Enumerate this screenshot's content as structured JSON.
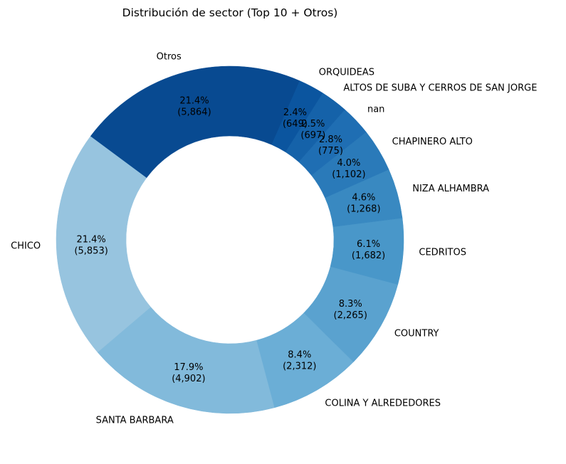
{
  "chart_data": {
    "type": "pie",
    "variant": "donut",
    "title": "Distribución de sector (Top 10 + Otros)",
    "legend": "none",
    "start_angle": "66.3° counter-clockwise from the positive x-axis",
    "direction": "counterclockwise",
    "slices": [
      {
        "label": "Otros",
        "value": 5864,
        "percent_label": "21.4%",
        "count_label": "(5,864)",
        "color": "#084a91"
      },
      {
        "label": "CHICO",
        "value": 5853,
        "percent_label": "21.4%",
        "count_label": "(5,853)",
        "color": "#97c4df"
      },
      {
        "label": "SANTA BARBARA",
        "value": 4902,
        "percent_label": "17.9%",
        "count_label": "(4,902)",
        "color": "#82badb"
      },
      {
        "label": "COLINA Y ALREDEDORES",
        "value": 2312,
        "percent_label": "8.4%",
        "count_label": "(2,312)",
        "color": "#6baed6"
      },
      {
        "label": "COUNTRY",
        "value": 2265,
        "percent_label": "8.3%",
        "count_label": "(2,265)",
        "color": "#5aa2cf"
      },
      {
        "label": "CEDRITOS",
        "value": 1682,
        "percent_label": "6.1%",
        "count_label": "(1,682)",
        "color": "#4997c9"
      },
      {
        "label": "NIZA ALHAMBRA",
        "value": 1268,
        "percent_label": "4.6%",
        "count_label": "(1,268)",
        "color": "#3989c1"
      },
      {
        "label": "CHAPINERO ALTO",
        "value": 1102,
        "percent_label": "4.0%",
        "count_label": "(1,102)",
        "color": "#2a7ab9"
      },
      {
        "label": "nan",
        "value": 775,
        "percent_label": "2.8%",
        "count_label": "(775)",
        "color": "#1f6eb3"
      },
      {
        "label": "ALTOS DE SUBA Y CERROS DE SAN JORGE",
        "value": 697,
        "percent_label": "2.5%",
        "count_label": "(697)",
        "color": "#1562a9"
      },
      {
        "label": "ORQUIDEAS",
        "value": 649,
        "percent_label": "2.4%",
        "count_label": "(649)",
        "color": "#0b559f"
      }
    ]
  }
}
